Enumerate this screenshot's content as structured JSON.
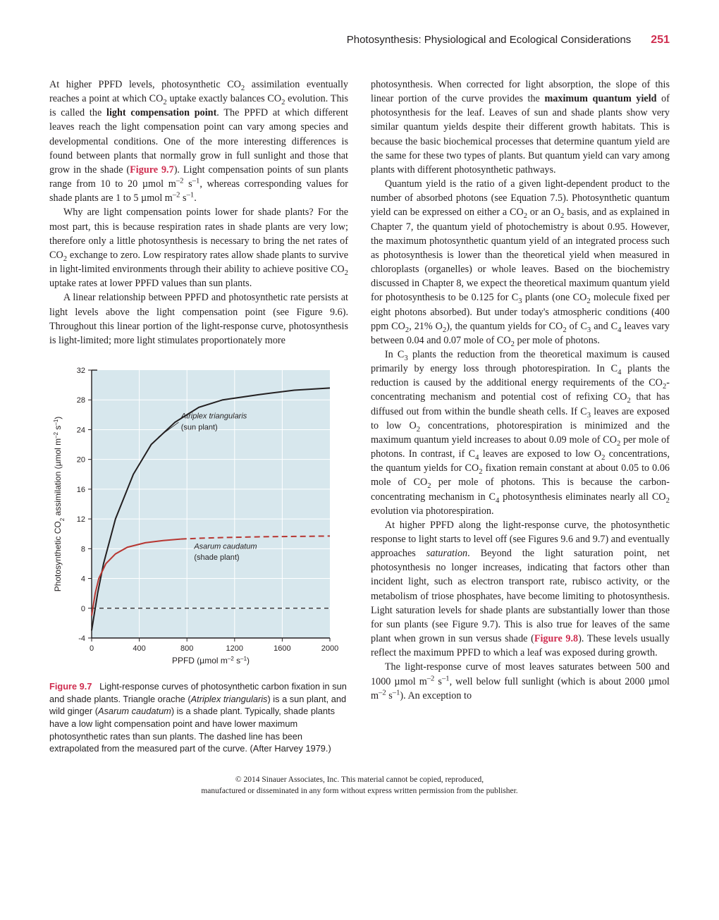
{
  "header": {
    "chapter_title": "Photosynthesis: Physiological and Ecological Considerations",
    "page_number": "251"
  },
  "left_paragraphs": {
    "p1_a": "At higher PPFD levels, photosynthetic CO",
    "p1_b": " assimilation eventually reaches a point at which CO",
    "p1_c": " uptake exactly balances CO",
    "p1_d": " evolution. This is called the ",
    "p1_term": "light compensation point",
    "p1_e": ". The PPFD at which different leaves reach the light compensation point can vary among species and developmental conditions. One of the more interesting differences is found between plants that normally grow in full sunlight and those that grow in the shade (",
    "p1_figref": "Figure 9.7",
    "p1_f": "). Light compensation points of sun plants range from 10 to 20 µmol m",
    "p1_g": " s",
    "p1_h": ", whereas corresponding values for shade plants are 1 to 5 µmol m",
    "p1_i": " s",
    "p1_j": ".",
    "p2_a": "Why are light compensation points lower for shade plants? For the most part, this is because respiration rates in shade plants are very low; therefore only a little photosynthesis is necessary to bring the net rates of CO",
    "p2_b": " exchange to zero. Low respiratory rates allow shade plants to survive in light-limited environments through their ability to achieve positive CO",
    "p2_c": " uptake rates at lower PPFD values than sun plants.",
    "p3": "A linear relationship between PPFD and photosynthetic rate persists at light levels above the light compensation point (see Figure 9.6). Throughout this linear portion of the light-response curve, photosynthesis is light-limited; more light stimulates proportionately more"
  },
  "right_paragraphs": {
    "p1_a": "photosynthesis. When corrected for light absorption, the slope of this linear portion of the curve provides the ",
    "p1_term": "maximum quantum yield",
    "p1_b": " of photosynthesis for the leaf. Leaves of sun and shade plants show very similar quantum yields despite their different growth habitats. This is because the basic biochemical processes that determine quantum yield are the same for these two types of plants. But quantum yield can vary among plants with different photosynthetic pathways.",
    "p2_a": "Quantum yield is the ratio of a given light-dependent product to the number of absorbed photons (see Equation 7.5). Photosynthetic quantum yield can be expressed on either a CO",
    "p2_b": " or an O",
    "p2_c": " basis, and as explained in Chapter 7, the quantum yield of photochemistry is about 0.95. However, the maximum photosynthetic quantum yield of an integrated process such as photosynthesis is lower than the theoretical yield when measured in chloroplasts (organelles) or whole leaves. Based on the biochemistry discussed in Chapter 8, we expect the theoretical maximum quantum yield for photosynthesis to be 0.125 for C",
    "p2_d": " plants (one CO",
    "p2_e": " molecule fixed per eight photons absorbed). But under today's atmospheric conditions (400 ppm CO",
    "p2_f": ", 21% O",
    "p2_g": "), the quantum yields for CO",
    "p2_h": " of C",
    "p2_i": " and C",
    "p2_j": " leaves vary between 0.04 and 0.07 mole of CO",
    "p2_k": " per mole of photons.",
    "p3_a": "In C",
    "p3_b": " plants the reduction from the theoretical maximum is caused primarily by energy loss through photorespiration. In C",
    "p3_c": " plants the reduction is caused by the additional energy requirements of the CO",
    "p3_d": "-concentrating mechanism and potential cost of refixing CO",
    "p3_e": " that has diffused out from within the bundle sheath cells. If C",
    "p3_f": " leaves are exposed to low O",
    "p3_g": " concentrations, photorespiration is minimized and the maximum quantum yield increases to about 0.09 mole of CO",
    "p3_h": " per mole of photons. In contrast, if C",
    "p3_i": " leaves are exposed to low O",
    "p3_j": " concentrations, the quantum yields for CO",
    "p3_k": " fixation remain constant at about 0.05 to 0.06 mole of CO",
    "p3_l": " per mole of photons. This is because the carbon-concentrating mechanism in C",
    "p3_m": " photosynthesis eliminates nearly all CO",
    "p3_n": " evolution via photorespiration.",
    "p4_a": "At higher PPFD along the light-response curve, the photosynthetic response to light starts to level off (see Figures 9.6 and 9.7) and eventually approaches ",
    "p4_ital": "saturation",
    "p4_b": ". Beyond the light saturation point, net photosynthesis no longer increases, indicating that factors other than incident light, such as electron transport rate, rubisco activity, or the metabolism of triose phosphates, have become limiting to photosynthesis. Light saturation levels for shade plants are substantially lower than those for sun plants (see Figure 9.7). This is also true for leaves of the same plant when grown in sun versus shade (",
    "p4_figref": "Figure 9.8",
    "p4_c": "). These levels usually reflect the maximum PPFD to which a leaf was exposed during growth.",
    "p5_a": "The light-response curve of most leaves saturates between 500 and 1000 µmol m",
    "p5_b": " s",
    "p5_c": ", well below full sunlight (which is about 2000 µmol m",
    "p5_d": " s",
    "p5_e": "). An exception to"
  },
  "figure": {
    "type": "line",
    "background_color": "#d7e7ed",
    "plot_border_color": "#231f20",
    "grid_color": "#ffffff",
    "xlim": [
      0,
      2000
    ],
    "ylim": [
      -4,
      32
    ],
    "xtick_step": 400,
    "ytick_step": 4,
    "x_ticks": [
      0,
      400,
      800,
      1200,
      1600,
      2000
    ],
    "y_ticks": [
      -4,
      0,
      4,
      8,
      12,
      16,
      20,
      24,
      28,
      32
    ],
    "xlabel_a": "PPFD (µmol m",
    "xlabel_b": " s",
    "xlabel_c": ")",
    "ylabel_a": "Photosynthetic CO",
    "ylabel_b": " assimilation (µmol m",
    "ylabel_c": " s",
    "ylabel_d": ")",
    "axis_fontsize": 12,
    "tick_fontsize": 11,
    "sun_series": {
      "label_ital": "Atriplex triangularis",
      "label_sub": "(sun plant)",
      "color": "#231f20",
      "line_width": 2,
      "points": [
        [
          0,
          -3
        ],
        [
          50,
          2
        ],
        [
          100,
          6
        ],
        [
          200,
          12
        ],
        [
          350,
          18
        ],
        [
          500,
          22
        ],
        [
          700,
          25
        ],
        [
          900,
          27
        ],
        [
          1100,
          28
        ],
        [
          1400,
          28.7
        ],
        [
          1700,
          29.3
        ],
        [
          2000,
          29.6
        ]
      ]
    },
    "shade_series": {
      "label_ital": "Asarum caudatum",
      "label_sub": "(shade plant)",
      "color": "#b73631",
      "line_width": 2,
      "points_solid": [
        [
          0,
          -1
        ],
        [
          30,
          2
        ],
        [
          60,
          4
        ],
        [
          120,
          6
        ],
        [
          200,
          7.3
        ],
        [
          300,
          8.2
        ],
        [
          450,
          8.8
        ],
        [
          600,
          9.1
        ],
        [
          750,
          9.3
        ]
      ],
      "points_dashed": [
        [
          750,
          9.3
        ],
        [
          900,
          9.4
        ],
        [
          1100,
          9.5
        ],
        [
          1400,
          9.6
        ],
        [
          1700,
          9.65
        ],
        [
          2000,
          9.7
        ]
      ],
      "dash_pattern": "8,5"
    },
    "zero_line": {
      "color": "#231f20",
      "dash_pattern": "6,5"
    },
    "caption_num": "Figure 9.7",
    "caption_a": "Light-response curves of photosynthetic carbon fixation in sun and shade plants. Triangle orache (",
    "caption_ital1": "Atriplex triangularis",
    "caption_b": ") is a sun plant, and wild ginger (",
    "caption_ital2": "Asarum caudatum",
    "caption_c": ") is a shade plant. Typically, shade plants have a low light compensation point and have lower maximum photosynthetic rates than sun plants. The dashed line has been extrapolated from the measured part of the curve. (After Harvey 1979.)"
  },
  "copyright": {
    "line1": "© 2014 Sinauer Associates, Inc.  This material cannot be copied, reproduced,",
    "line2": "manufactured or disseminated in any form without express written permission from the publisher."
  }
}
